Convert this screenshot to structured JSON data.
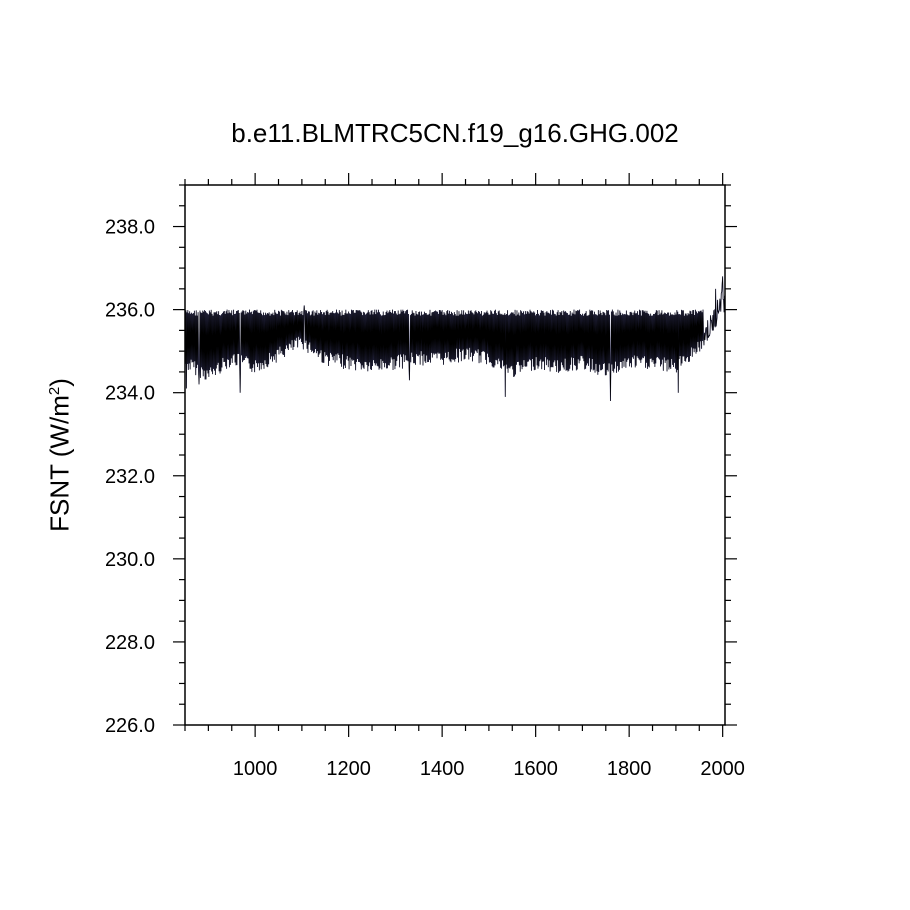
{
  "chart_data": {
    "type": "line",
    "title": "b.e11.BLMTRC5CN.f19_g16.GHG.002",
    "ylabel": "FSNT (W/m",
    "ylabel_sup": "2",
    "ylabel_close": ")",
    "xlim": [
      850,
      2005
    ],
    "ylim": [
      226.0,
      239.0
    ],
    "xticks": [
      1000,
      1200,
      1400,
      1600,
      1800,
      2000
    ],
    "xtick_labels": [
      "1000",
      "1200",
      "1400",
      "1600",
      "1800",
      "2000"
    ],
    "yticks": [
      226.0,
      228.0,
      230.0,
      232.0,
      234.0,
      236.0,
      238.0
    ],
    "ytick_labels": [
      "226.0",
      "228.0",
      "230.0",
      "232.0",
      "234.0",
      "236.0",
      "238.0"
    ],
    "grid": false,
    "series": [
      {
        "color": "#000000",
        "x": [
          850,
          900,
          950,
          1000,
          1050,
          1100,
          1150,
          1200,
          1250,
          1300,
          1350,
          1400,
          1450,
          1500,
          1550,
          1600,
          1650,
          1700,
          1750,
          1800,
          1850,
          1900,
          1950,
          1975,
          1990,
          2000,
          2005
        ],
        "y": [
          234.9,
          234.6,
          235.0,
          234.8,
          235.1,
          235.4,
          235.0,
          234.9,
          234.8,
          234.9,
          235.0,
          235.0,
          235.1,
          235.0,
          234.7,
          234.9,
          234.8,
          234.9,
          234.7,
          234.9,
          234.9,
          234.8,
          235.3,
          235.6,
          236.0,
          236.4,
          236.1
        ],
        "max": 236.0,
        "min_values": [
          {
            "x": 853,
            "y": 234.1
          },
          {
            "x": 880,
            "y": 234.2
          },
          {
            "x": 968,
            "y": 234.0
          },
          {
            "x": 1105,
            "y": 236.1
          },
          {
            "x": 1330,
            "y": 234.3
          },
          {
            "x": 1535,
            "y": 233.9
          },
          {
            "x": 1760,
            "y": 233.8
          },
          {
            "x": 1905,
            "y": 234.0
          },
          {
            "x": 1985,
            "y": 236.5
          },
          {
            "x": 2000,
            "y": 236.8
          }
        ]
      }
    ]
  }
}
